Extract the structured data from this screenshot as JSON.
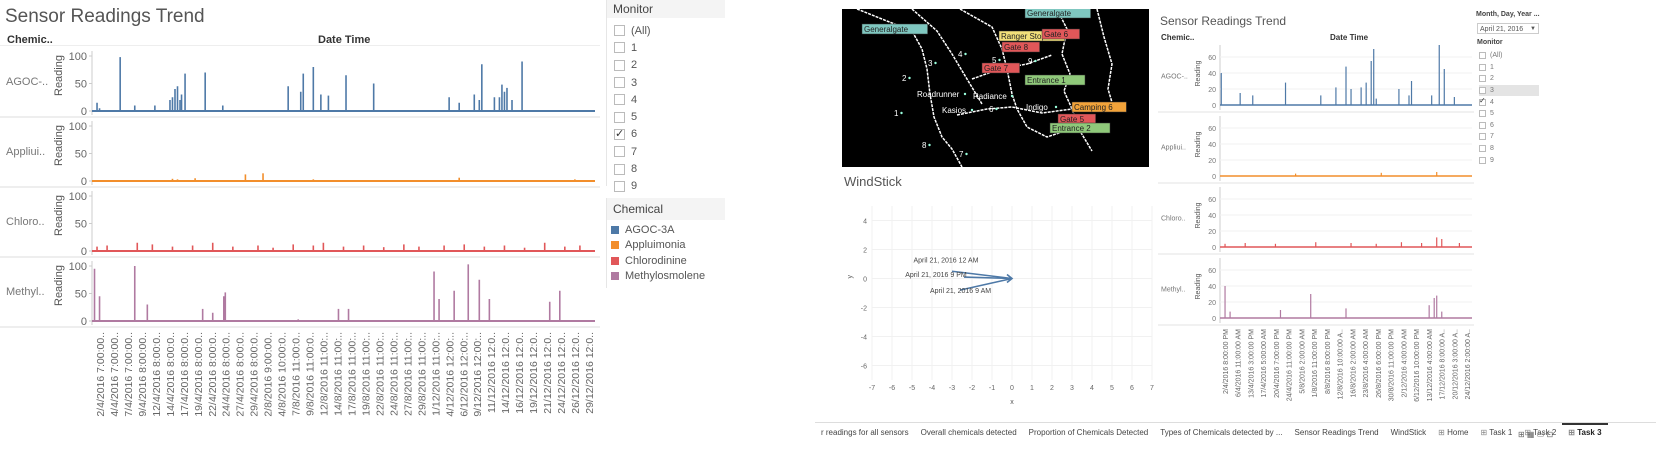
{
  "left": {
    "title": "Sensor Readings Trend",
    "col_header_chemical": "Chemic..",
    "col_header_datetime": "Date Time",
    "row_labels": [
      "AGOC-..",
      "Appliui..",
      "Chloro..",
      "Methyl.."
    ],
    "y_axis_title": "Reading",
    "y_ticks": [
      "100",
      "50",
      "0"
    ],
    "x_ticks": [
      "2/4/2016 7:00:00..",
      "4/4/2016 7:00:00..",
      "7/4/2016 7:00:00..",
      "9/4/2016 8:00:00..",
      "12/4/2016 8:00:0..",
      "14/4/2016 8:00:0..",
      "17/4/2016 8:00:0..",
      "19/4/2016 8:00:0..",
      "22/4/2016 8:00:0..",
      "24/4/2016 8:00:0..",
      "27/4/2016 8:00:0..",
      "29/4/2016 8:00:0..",
      "2/8/2016 9:00:00..",
      "4/8/2016 10:00:0..",
      "7/8/2016 11:00:0..",
      "9/8/2016 11:00:0..",
      "12/8/2016 11:00:..",
      "14/8/2016 11:00:..",
      "17/8/2016 11:00:..",
      "19/8/2016 11:00:..",
      "22/8/2016 11:00:..",
      "24/8/2016 11:00:..",
      "27/8/2016 11:00:..",
      "29/8/2016 11:00:..",
      "1/12/2016 11:00:..",
      "4/12/2016 12:00:..",
      "6/12/2016 12:00:..",
      "9/12/2016 12:00:..",
      "11/12/2016 12:0..",
      "14/12/2016 12:0..",
      "16/12/2016 12:0..",
      "19/12/2016 12:0..",
      "21/12/2016 12:0..",
      "24/12/2016 12:0..",
      "26/12/2016 12:0..",
      "29/12/2016 12:0.."
    ]
  },
  "monitor_filter": {
    "title": "Monitor",
    "items": [
      {
        "label": "(All)",
        "checked": false
      },
      {
        "label": "1",
        "checked": false
      },
      {
        "label": "2",
        "checked": false
      },
      {
        "label": "3",
        "checked": false
      },
      {
        "label": "4",
        "checked": false
      },
      {
        "label": "5",
        "checked": false
      },
      {
        "label": "6",
        "checked": true
      },
      {
        "label": "7",
        "checked": false
      },
      {
        "label": "8",
        "checked": false
      },
      {
        "label": "9",
        "checked": false
      }
    ]
  },
  "chemical_legend": {
    "title": "Chemical",
    "items": [
      {
        "label": "AGOC-3A",
        "color": "#4e79a7"
      },
      {
        "label": "Appluimonia",
        "color": "#f28e2b"
      },
      {
        "label": "Chlorodinine",
        "color": "#e15759"
      },
      {
        "label": "Methylosmolene",
        "color": "#b07aa1"
      }
    ]
  },
  "map": {
    "labels": [
      {
        "text": "Generalgate",
        "bg": "#7fc7c0"
      },
      {
        "text": "Generalgate",
        "bg": "#7fc7c0"
      },
      {
        "text": "Ranger Stop",
        "bg": "#f2e07a"
      },
      {
        "text": "Gate 8",
        "bg": "#e15759"
      },
      {
        "text": "Gate 6",
        "bg": "#e15759"
      },
      {
        "text": "Gate 7",
        "bg": "#e15759"
      },
      {
        "text": "Entrance 1",
        "bg": "#8fc97a"
      },
      {
        "text": "Camping 6",
        "bg": "#f2a33a"
      },
      {
        "text": "Gate 5",
        "bg": "#e15759"
      },
      {
        "text": "Entrance 2",
        "bg": "#8fc97a"
      },
      {
        "text": "Roadrunner",
        "bg": ""
      },
      {
        "text": "Radiance",
        "bg": ""
      },
      {
        "text": "Kasios",
        "bg": ""
      },
      {
        "text": "Indigo",
        "bg": ""
      },
      {
        "text": "1",
        "bg": ""
      },
      {
        "text": "2",
        "bg": ""
      },
      {
        "text": "3",
        "bg": ""
      },
      {
        "text": "4",
        "bg": ""
      },
      {
        "text": "5",
        "bg": ""
      },
      {
        "text": "6",
        "bg": ""
      },
      {
        "text": "7",
        "bg": ""
      },
      {
        "text": "8",
        "bg": ""
      },
      {
        "text": "9",
        "bg": ""
      }
    ]
  },
  "windstick": {
    "title": "WindStick",
    "x_ticks": [
      "-7",
      "-6",
      "-5",
      "-4",
      "-3",
      "-2",
      "-1",
      "0",
      "1",
      "2",
      "3",
      "4",
      "5",
      "6",
      "7"
    ],
    "y_ticks": [
      "4",
      "2",
      "0",
      "-2",
      "-4",
      "-6"
    ],
    "xlabel": "x",
    "ylabel": "y",
    "annotations": [
      "April 21, 2016 12 AM",
      "April 21, 2016 9 PM",
      "April 21, 2016 9 AM"
    ]
  },
  "right": {
    "title": "Sensor Readings Trend",
    "col_header_chemical": "Chemic..",
    "col_header_datetime": "Date Time",
    "row_labels": [
      "AGOC-..",
      "Appliui..",
      "Chloro..",
      "Methyl.."
    ],
    "y_axis_title": "Reading",
    "y_ticks": [
      "60",
      "40",
      "20",
      "0"
    ],
    "x_ticks": [
      "2/4/2016 8:00:00 PM",
      "6/4/2016 11:00:00 AM",
      "13/4/2016 3:00:00 PM",
      "17/4/2016 5:00:00 AM",
      "20/4/2016 7:00:00 PM",
      "24/4/2016 11:00:00 PM",
      "5/8/2016 2:00:00 AM",
      "1/8/2016 11:00:00 PM",
      "8/8/2016 8:00:00 PM",
      "12/8/2016 10:00:00 A..",
      "16/8/2016 2:00:00 AM",
      "23/8/2016 4:00:00 AM",
      "26/8/2016 6:00:00 PM",
      "30/8/2016 11:00:00 PM",
      "2/12/2016 4:00:00 AM",
      "6/12/2016 10:00:00 PM",
      "13/12/2016 4:00:00 AM",
      "17/12/2016 8:00:00 A..",
      "20/12/2016 3:00:00 A..",
      "24/12/2016 2:00:00 A.."
    ]
  },
  "right_filters": {
    "date_title": "Month, Day, Year ...",
    "date_value": "April 21, 2016",
    "monitor_title": "Monitor",
    "items": [
      {
        "label": "(All)",
        "checked": false
      },
      {
        "label": "1",
        "checked": false
      },
      {
        "label": "2",
        "checked": false
      },
      {
        "label": "3",
        "checked": false
      },
      {
        "label": "4",
        "checked": true
      },
      {
        "label": "5",
        "checked": false
      },
      {
        "label": "6",
        "checked": false
      },
      {
        "label": "7",
        "checked": false
      },
      {
        "label": "8",
        "checked": false
      },
      {
        "label": "9",
        "checked": false
      }
    ]
  },
  "tabs": {
    "items": [
      "r readings for all sensors",
      "Overall chemicals detected",
      "Proportion of Chemicals Detected",
      "Types of Chemicals detected by ...",
      "Sensor Readings Trend",
      "WindStick",
      "Home",
      "Task 1",
      "Task 2",
      "Task 3"
    ],
    "active_index": 9
  },
  "colors": {
    "agoc": "#4e79a7",
    "appl": "#f28e2b",
    "chlo": "#e15759",
    "meth": "#b07aa1"
  },
  "chart_data": [
    {
      "type": "line",
      "title": "Sensor Readings Trend",
      "xlabel": "Date Time",
      "ylabel": "Reading",
      "ylim": [
        0,
        100
      ],
      "series": [
        {
          "name": "AGOC-3A",
          "spikes": [
            [
              0.01,
              15
            ],
            [
              0.015,
              5
            ],
            [
              0.056,
              98
            ],
            [
              0.085,
              10
            ],
            [
              0.125,
              10
            ],
            [
              0.155,
              20
            ],
            [
              0.16,
              25
            ],
            [
              0.165,
              40
            ],
            [
              0.17,
              45
            ],
            [
              0.175,
              20
            ],
            [
              0.178,
              30
            ],
            [
              0.185,
              68
            ],
            [
              0.225,
              70
            ],
            [
              0.26,
              10
            ],
            [
              0.39,
              45
            ],
            [
              0.415,
              35
            ],
            [
              0.42,
              68
            ],
            [
              0.44,
              80
            ],
            [
              0.455,
              30
            ],
            [
              0.47,
              28
            ],
            [
              0.505,
              65
            ],
            [
              0.56,
              50
            ],
            [
              0.71,
              25
            ],
            [
              0.73,
              15
            ],
            [
              0.76,
              30
            ],
            [
              0.77,
              20
            ],
            [
              0.775,
              85
            ],
            [
              0.8,
              25
            ],
            [
              0.81,
              25
            ],
            [
              0.815,
              48
            ],
            [
              0.82,
              35
            ],
            [
              0.825,
              42
            ],
            [
              0.835,
              20
            ],
            [
              0.855,
              90
            ]
          ]
        },
        {
          "name": "Appluimonia",
          "spikes": [
            [
              0.16,
              4
            ],
            [
              0.17,
              3
            ],
            [
              0.205,
              5
            ],
            [
              0.305,
              12
            ],
            [
              0.34,
              14
            ],
            [
              0.44,
              3
            ],
            [
              0.73,
              6
            ],
            [
              0.96,
              3
            ]
          ]
        },
        {
          "name": "Chlorodinine",
          "spikes": [
            [
              0.01,
              8
            ],
            [
              0.03,
              10
            ],
            [
              0.09,
              15
            ],
            [
              0.12,
              12
            ],
            [
              0.16,
              8
            ],
            [
              0.2,
              10
            ],
            [
              0.24,
              15
            ],
            [
              0.28,
              8
            ],
            [
              0.33,
              10
            ],
            [
              0.36,
              6
            ],
            [
              0.4,
              12
            ],
            [
              0.44,
              10
            ],
            [
              0.46,
              15
            ],
            [
              0.5,
              8
            ],
            [
              0.54,
              10
            ],
            [
              0.58,
              7
            ],
            [
              0.62,
              12
            ],
            [
              0.65,
              8
            ],
            [
              0.7,
              10
            ],
            [
              0.74,
              12
            ],
            [
              0.78,
              8
            ],
            [
              0.82,
              10
            ],
            [
              0.86,
              6
            ],
            [
              0.9,
              15
            ],
            [
              0.94,
              8
            ],
            [
              0.97,
              10
            ]
          ]
        },
        {
          "name": "Methylosmolene",
          "spikes": [
            [
              0.005,
              95
            ],
            [
              0.015,
              45
            ],
            [
              0.085,
              100
            ],
            [
              0.11,
              30
            ],
            [
              0.22,
              22
            ],
            [
              0.24,
              15
            ],
            [
              0.262,
              45
            ],
            [
              0.265,
              52
            ],
            [
              0.41,
              3
            ],
            [
              0.49,
              22
            ],
            [
              0.51,
              22
            ],
            [
              0.68,
              90
            ],
            [
              0.69,
              40
            ],
            [
              0.72,
              55
            ],
            [
              0.748,
              103
            ],
            [
              0.77,
              75
            ],
            [
              0.79,
              40
            ],
            [
              0.91,
              35
            ],
            [
              0.93,
              55
            ]
          ]
        }
      ]
    },
    {
      "type": "line",
      "title": "Sensor Readings Trend",
      "xlabel": "Date Time",
      "ylabel": "Reading",
      "ylim": [
        0,
        70
      ],
      "series": [
        {
          "name": "AGOC-3A",
          "spikes": [
            [
              0.005,
              40
            ],
            [
              0.08,
              15
            ],
            [
              0.13,
              12
            ],
            [
              0.26,
              28
            ],
            [
              0.4,
              12
            ],
            [
              0.46,
              22
            ],
            [
              0.5,
              48
            ],
            [
              0.52,
              20
            ],
            [
              0.56,
              22
            ],
            [
              0.58,
              28
            ],
            [
              0.6,
              55
            ],
            [
              0.61,
              70
            ],
            [
              0.62,
              8
            ],
            [
              0.71,
              20
            ],
            [
              0.75,
              12
            ],
            [
              0.76,
              30
            ],
            [
              0.84,
              12
            ],
            [
              0.87,
              75
            ],
            [
              0.89,
              45
            ],
            [
              0.93,
              10
            ]
          ]
        },
        {
          "name": "Appluimonia",
          "spikes": [
            [
              0.3,
              3
            ],
            [
              0.64,
              4
            ],
            [
              0.86,
              5
            ]
          ]
        },
        {
          "name": "Chlorodinine",
          "spikes": [
            [
              0.02,
              4
            ],
            [
              0.1,
              5
            ],
            [
              0.22,
              4
            ],
            [
              0.38,
              6
            ],
            [
              0.52,
              5
            ],
            [
              0.62,
              4
            ],
            [
              0.72,
              6
            ],
            [
              0.8,
              5
            ],
            [
              0.86,
              12
            ],
            [
              0.88,
              10
            ],
            [
              0.95,
              5
            ]
          ]
        },
        {
          "name": "Methylosmolene",
          "spikes": [
            [
              0.02,
              40
            ],
            [
              0.04,
              8
            ],
            [
              0.24,
              10
            ],
            [
              0.36,
              30
            ],
            [
              0.5,
              12
            ],
            [
              0.83,
              16
            ],
            [
              0.85,
              25
            ],
            [
              0.86,
              28
            ],
            [
              0.88,
              8
            ]
          ]
        }
      ]
    },
    {
      "type": "line",
      "title": "WindStick",
      "xlabel": "x",
      "ylabel": "y",
      "xlim": [
        -7,
        7
      ],
      "ylim": [
        -7,
        5
      ],
      "series": [
        {
          "name": "April 21, 2016 12 AM",
          "x": [
            -3,
            0
          ],
          "y": [
            0.5,
            0
          ]
        },
        {
          "name": "April 21, 2016 9 PM",
          "x": [
            -2.4,
            0
          ],
          "y": [
            0.1,
            0
          ]
        },
        {
          "name": "April 21, 2016 9 AM",
          "x": [
            -2.6,
            0
          ],
          "y": [
            -0.8,
            0
          ]
        }
      ]
    }
  ]
}
